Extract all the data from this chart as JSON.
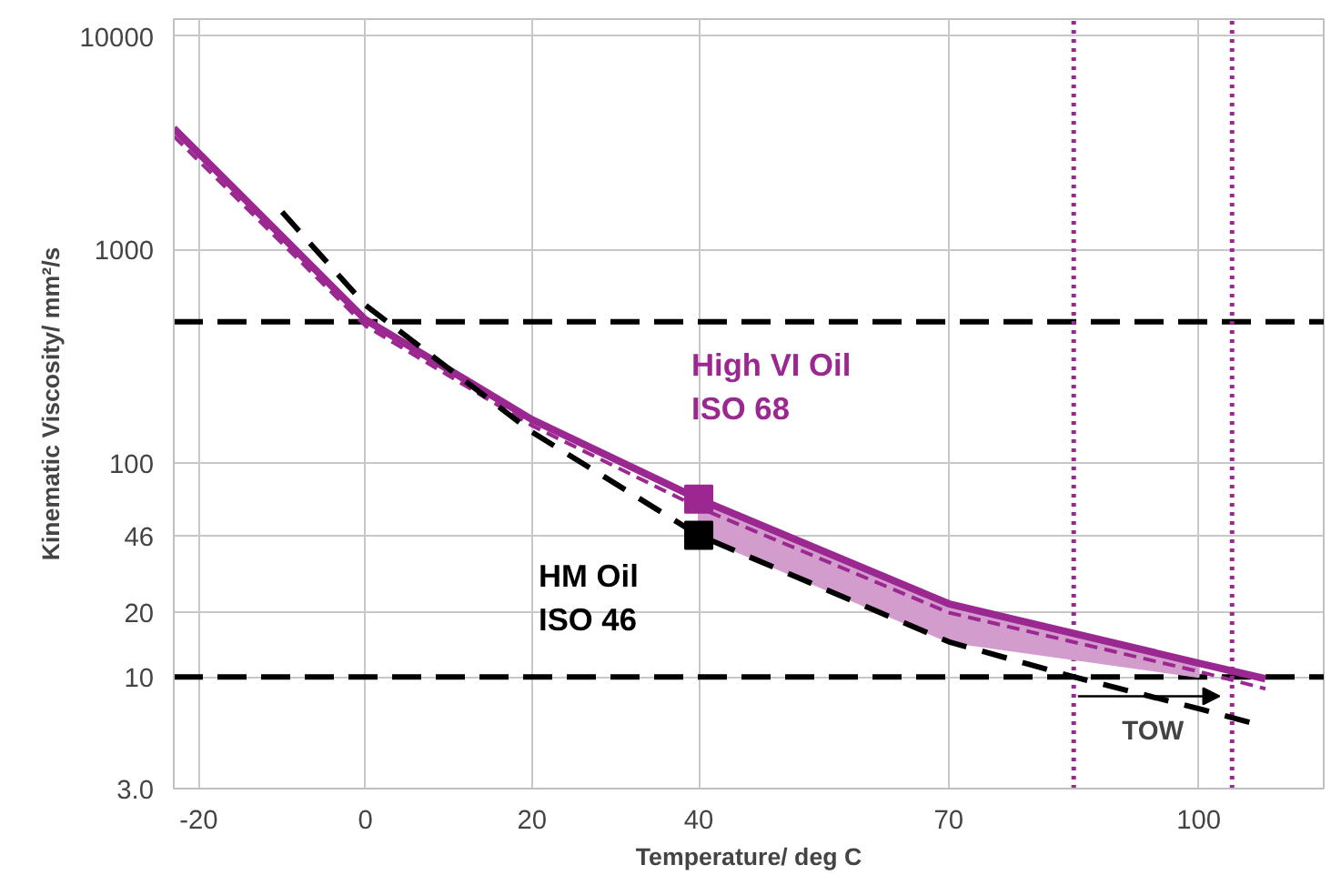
{
  "chart_data": {
    "type": "line",
    "xlabel": "Temperature/ deg C",
    "ylabel": "Kinematic Viscosity/ mm²/s",
    "xlim": [
      -23,
      115
    ],
    "xticks": [
      -20,
      0,
      20,
      40,
      70,
      100
    ],
    "ylim": [
      3,
      12000
    ],
    "yticks": [
      {
        "value": 3,
        "label": "3.0"
      },
      10,
      20,
      46,
      100,
      1000,
      10000
    ],
    "log": "y",
    "grid": true,
    "legend": false,
    "series": [
      {
        "name": "High VI Oil\nISO 68",
        "color": "#9b2790",
        "line_style": "solid",
        "x": [
          -23,
          0,
          20,
          40,
          70,
          100,
          108
        ],
        "values": [
          3700,
          470,
          160,
          68,
          22,
          11.6,
          9.8
        ],
        "lower": [
          null,
          null,
          null,
          46,
          14.6,
          10,
          null
        ],
        "upper": [
          null,
          null,
          null,
          68,
          22,
          11.6,
          null
        ]
      },
      {
        "color": "#9b2790",
        "line_style": "dashed",
        "x": [
          -23,
          0,
          20,
          40,
          70,
          100,
          108
        ],
        "values": [
          3400,
          440,
          150,
          62,
          20,
          10.6,
          8.8
        ]
      },
      {
        "name": "HM Oil\nISO 46",
        "color": "#000000",
        "line_style": "dashed",
        "x": [
          -10,
          0,
          20,
          40,
          70,
          85,
          100,
          107
        ],
        "values": [
          1500,
          550,
          140,
          46,
          14.6,
          10,
          7.1,
          6.0
        ]
      },
      {
        "type": "scatter",
        "color": "#9b2790",
        "marker": "square",
        "x": [
          40
        ],
        "values": [
          68
        ]
      },
      {
        "type": "scatter",
        "color": "#000000",
        "marker": "square",
        "x": [
          40
        ],
        "values": [
          46
        ]
      }
    ],
    "ref_lines": [
      {
        "axis": "y",
        "value": 460,
        "color": "#000000",
        "line_style": "dashed"
      },
      {
        "axis": "y",
        "value": 10,
        "color": "#000000",
        "line_style": "dashed"
      },
      {
        "axis": "x",
        "value": 85,
        "color": "#9b2790",
        "line_style": "dotted"
      },
      {
        "axis": "x",
        "value": 104,
        "color": "#9b2790",
        "line_style": "dotted"
      }
    ],
    "annotations": [
      "TOW"
    ]
  }
}
